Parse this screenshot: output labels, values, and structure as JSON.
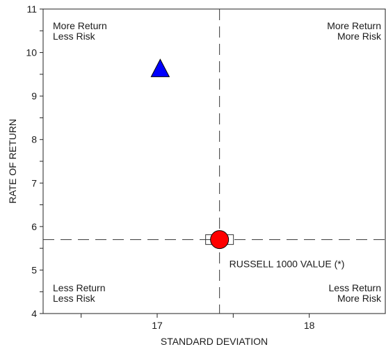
{
  "chart_data": {
    "type": "scatter",
    "title": "",
    "xlabel": "STANDARD DEVIATION",
    "ylabel": "RATE OF RETURN",
    "xlim": [
      16.25,
      18.5
    ],
    "ylim": [
      4,
      11
    ],
    "x_ticks": [
      17,
      18
    ],
    "x_tick_labels": [
      "17",
      "18"
    ],
    "y_ticks": [
      4,
      5,
      6,
      7,
      8,
      9,
      10,
      11
    ],
    "y_tick_labels": [
      "4",
      "5",
      "6",
      "7",
      "8",
      "9",
      "10",
      "11"
    ],
    "grid": false,
    "reference_lines": {
      "x": 17.41,
      "y": 5.7
    },
    "quadrant_labels": {
      "top_left": [
        "More Return",
        "Less Risk"
      ],
      "top_right": [
        "More Return",
        "More Risk"
      ],
      "bottom_left": [
        "Less Return",
        "Less Risk"
      ],
      "bottom_right": [
        "Less Return",
        "More Risk"
      ]
    },
    "points": [
      {
        "x": 17.02,
        "y": 9.62,
        "marker": "triangle",
        "color": "#0000ff",
        "label": ""
      },
      {
        "x": 17.41,
        "y": 5.7,
        "marker": "circle",
        "color": "#ff0000",
        "label": "RUSSELL 1000 VALUE (*)"
      }
    ]
  }
}
